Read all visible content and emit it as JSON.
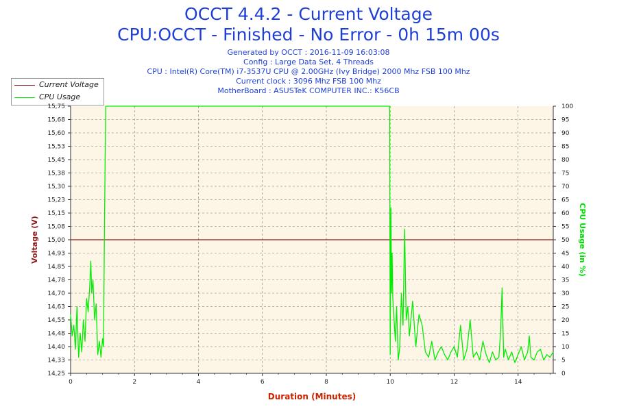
{
  "header": {
    "title_line1": "OCCT 4.4.2 - Current Voltage",
    "title_line2": "CPU:OCCT - Finished - No Error - 0h 15m 00s",
    "info_lines": [
      "Generated by OCCT : 2016-11-09 16:03:08",
      "Config : Large Data Set, 4 Threads",
      "CPU : Intel(R) Core(TM) i7-3537U CPU @ 2.00GHz (Ivy Bridge) 2000 Mhz FSB 100 Mhz",
      "Current clock : 3096 Mhz FSB 100 Mhz",
      "MotherBoard : ASUSTeK COMPUTER INC.: K56CB"
    ]
  },
  "legend": {
    "voltage_label": "Current Voltage",
    "cpu_label": "CPU Usage"
  },
  "colors": {
    "voltage": "#8b1a1a",
    "cpu": "#00ee00",
    "plot_bg": "#fdf5e6",
    "xlabel": "#cc2200",
    "ylabel_left": "#8b1a1a",
    "ylabel_right": "#00dd00"
  },
  "chart_data": {
    "type": "line",
    "xlabel": "Duration (Minutes)",
    "ylabel": "Voltage (V)",
    "y2label": "CPU Usage (in %)",
    "xlim": [
      0,
      15.1
    ],
    "ylim": [
      14.25,
      15.75
    ],
    "y2lim": [
      0,
      100
    ],
    "x_ticks": [
      "0",
      "2",
      "4",
      "6",
      "8",
      "10",
      "12",
      "14"
    ],
    "y_ticks": [
      "14,25",
      "14,33",
      "14,40",
      "14,48",
      "14,55",
      "14,63",
      "14,70",
      "14,78",
      "14,85",
      "14,93",
      "15,00",
      "15,08",
      "15,15",
      "15,23",
      "15,30",
      "15,38",
      "15,45",
      "15,53",
      "15,60",
      "15,68",
      "15,75"
    ],
    "y2_ticks": [
      "0",
      "5",
      "10",
      "15",
      "20",
      "25",
      "30",
      "35",
      "40",
      "45",
      "50",
      "55",
      "60",
      "65",
      "70",
      "75",
      "80",
      "85",
      "90",
      "95",
      "100"
    ],
    "grid": true,
    "legend_position": "top-left",
    "series": [
      {
        "name": "Current Voltage",
        "axis": "left",
        "x": [
          0,
          15.1
        ],
        "y": [
          15.0,
          15.0
        ]
      },
      {
        "name": "CPU Usage",
        "axis": "right",
        "x": [
          0,
          0.05,
          0.1,
          0.15,
          0.2,
          0.25,
          0.3,
          0.35,
          0.4,
          0.45,
          0.5,
          0.55,
          0.6,
          0.63,
          0.66,
          0.7,
          0.75,
          0.8,
          0.85,
          0.9,
          0.95,
          1.0,
          1.03,
          1.06,
          1.08,
          1.1,
          1.12,
          9.98,
          10.0,
          10.02,
          10.04,
          10.06,
          10.08,
          10.12,
          10.16,
          10.2,
          10.25,
          10.3,
          10.35,
          10.4,
          10.45,
          10.5,
          10.55,
          10.6,
          10.7,
          10.8,
          10.9,
          11.0,
          11.1,
          11.2,
          11.3,
          11.4,
          11.5,
          11.6,
          11.7,
          11.8,
          11.9,
          12.0,
          12.1,
          12.2,
          12.3,
          12.4,
          12.5,
          12.6,
          12.7,
          12.8,
          12.9,
          13.0,
          13.1,
          13.2,
          13.3,
          13.4,
          13.45,
          13.5,
          13.55,
          13.6,
          13.7,
          13.8,
          13.9,
          14.0,
          14.1,
          14.2,
          14.3,
          14.35,
          14.4,
          14.5,
          14.6,
          14.7,
          14.8,
          14.9,
          15.0,
          15.1
        ],
        "y": [
          22,
          14,
          18,
          9,
          25,
          6,
          15,
          8,
          20,
          12,
          28,
          23,
          33,
          42,
          30,
          35,
          20,
          26,
          7,
          12,
          6,
          13,
          10,
          55,
          80,
          100,
          100,
          100,
          7,
          62,
          30,
          45,
          28,
          20,
          12,
          25,
          5,
          10,
          30,
          18,
          54,
          20,
          25,
          14,
          27,
          10,
          22,
          18,
          8,
          6,
          12,
          5,
          8,
          10,
          7,
          5,
          8,
          10,
          6,
          18,
          5,
          9,
          20,
          6,
          8,
          5,
          12,
          7,
          4,
          8,
          5,
          6,
          15,
          32,
          6,
          9,
          5,
          8,
          4,
          7,
          10,
          5,
          8,
          14,
          6,
          5,
          8,
          9,
          5,
          7,
          6,
          8
        ]
      }
    ]
  }
}
